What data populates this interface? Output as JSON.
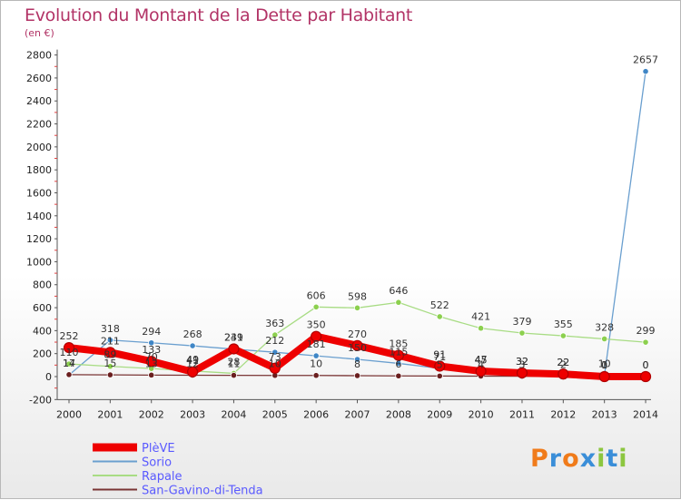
{
  "header": {
    "title": "Evolution du Montant de la Dette par Habitant",
    "subtitle": "(en €)"
  },
  "logo": {
    "text": "Proxiti",
    "colors": [
      "#f07b1a",
      "#3a8ed8",
      "#f07b1a",
      "#3a8ed8",
      "#8cc63f",
      "#3a8ed8",
      "#8cc63f"
    ]
  },
  "chart_data": {
    "type": "line",
    "title": "Evolution du Montant de la Dette par Habitant",
    "subtitle": "(en €)",
    "xlabel": "",
    "ylabel": "",
    "ylim": [
      -200,
      2800
    ],
    "yticks": [
      -200,
      0,
      200,
      400,
      600,
      800,
      1000,
      1200,
      1400,
      1600,
      1800,
      2000,
      2200,
      2400,
      2600,
      2800
    ],
    "grid": false,
    "legend": "bottom-left",
    "categories": [
      "2000",
      "2001",
      "2002",
      "2003",
      "2004",
      "2005",
      "2006",
      "2007",
      "2008",
      "2009",
      "2010",
      "2011",
      "2012",
      "2013",
      "2014"
    ],
    "series": [
      {
        "name": "Sorio",
        "color": "#6a9fcf",
        "marker": "#3f86c6",
        "width": 1.3,
        "values": [
          14,
          318,
          294,
          268,
          239,
          212,
          181,
          150,
          115,
          71,
          45,
          32,
          22,
          10,
          2657
        ],
        "labels": [
          "14",
          "318",
          "294",
          "268",
          "239",
          "212",
          "181",
          "150",
          "115",
          "71",
          "45",
          "32",
          "22",
          "10",
          "2657"
        ]
      },
      {
        "name": "Rapale",
        "color": "#a8dc84",
        "marker": "#8cd04e",
        "width": 1.3,
        "values": [
          110,
          89,
          70,
          49,
          28,
          363,
          606,
          598,
          646,
          522,
          421,
          379,
          355,
          328,
          299
        ],
        "labels": [
          "110",
          "89",
          "70",
          "49",
          "28",
          "363",
          "606",
          "598",
          "646",
          "522",
          "421",
          "379",
          "355",
          "328",
          "299"
        ]
      },
      {
        "name": "San-Gavino-di-Tenda",
        "color": "#7a3535",
        "marker": "#6a1f1f",
        "width": 1.3,
        "values": [
          17,
          15,
          13,
          12,
          11,
          10,
          10,
          8,
          6,
          5,
          4,
          3,
          2,
          1,
          0
        ],
        "labels": [
          "17",
          "15",
          "13",
          "12",
          "11",
          "10",
          "10",
          "8",
          "6",
          "5",
          "4",
          "3",
          "2",
          "1",
          "0"
        ]
      },
      {
        "name": "PlèVE",
        "color": "#ee0000",
        "marker": "#ee0000",
        "width": 8,
        "values": [
          252,
          211,
          133,
          41,
          241,
          73,
          350,
          270,
          185,
          91,
          47,
          32,
          22,
          0,
          0
        ],
        "labels": [
          "252",
          "211",
          "133",
          "41",
          "241",
          "73",
          "350",
          "270",
          "185",
          "91",
          "47",
          "32",
          "22",
          "0",
          "0"
        ]
      }
    ]
  }
}
